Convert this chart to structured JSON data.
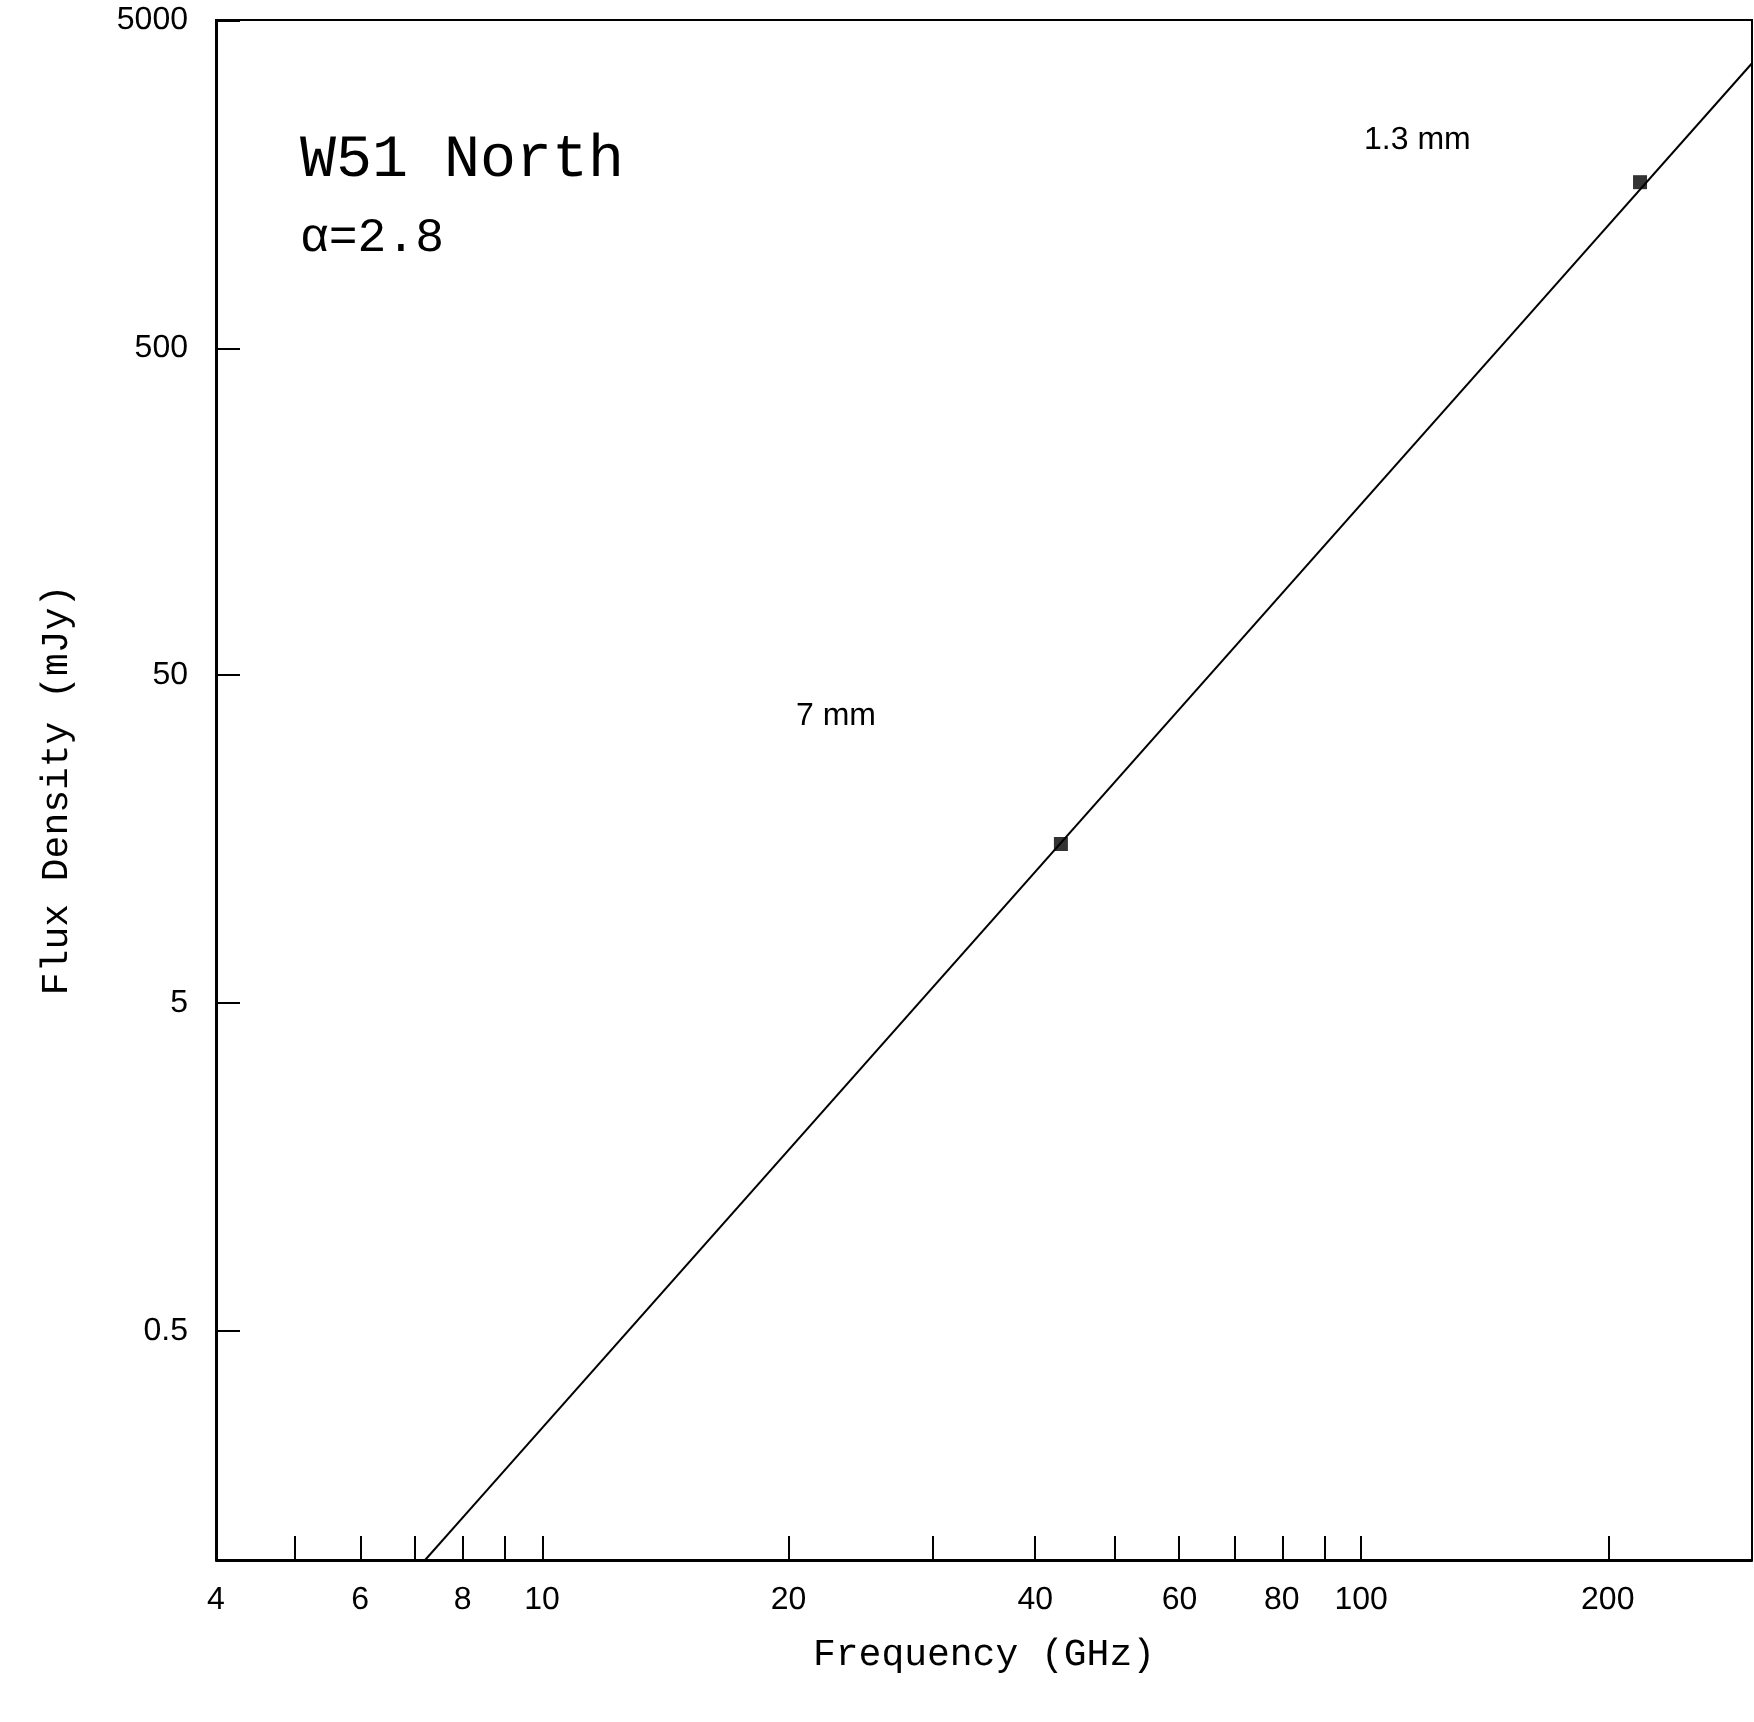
{
  "chart_data": {
    "type": "scatter",
    "xlabel": "Frequency (GHz)",
    "ylabel": "Flux Density (mJy)",
    "log": "xy",
    "xlim": [
      4,
      300
    ],
    "ylim": [
      0.1,
      5000
    ],
    "xticks": [
      4,
      {
        "value": 5,
        "label": null
      },
      6,
      {
        "value": 7,
        "label": null
      },
      8,
      {
        "value": 9,
        "label": null
      },
      10,
      20,
      {
        "value": 30,
        "label": null
      },
      40,
      {
        "value": 50,
        "label": null
      },
      60,
      {
        "value": 70,
        "label": null
      },
      80,
      {
        "value": 90,
        "label": null
      },
      100,
      200
    ],
    "yticks": [
      0.5,
      5,
      50,
      500,
      5000
    ],
    "annotations": [
      "W51 North",
      "α=2.8",
      "1.3 mm",
      "7 mm"
    ],
    "series": [
      {
        "color": "#000000",
        "marker": "square",
        "x": [
          43,
          219
        ],
        "values": [
          15.3,
          1600
        ]
      },
      {
        "type": "line",
        "color": "#000000",
        "marker": "none",
        "line_style": "solid",
        "x": [
          7.2,
          300
        ],
        "values": [
          0.1,
          3690
        ]
      }
    ]
  }
}
